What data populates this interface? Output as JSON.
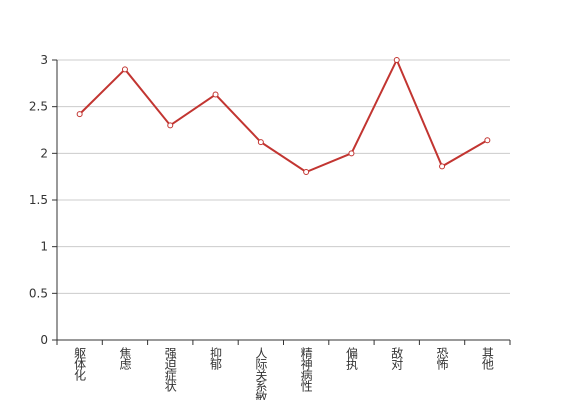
{
  "chart_data": {
    "type": "line",
    "categories": [
      "躯体化",
      "焦虑",
      "强迫症状",
      "抑郁",
      "人际关系敏感",
      "精神病性",
      "偏执",
      "敌对",
      "恐怖",
      "其他"
    ],
    "values": [
      2.42,
      2.9,
      2.3,
      2.63,
      2.12,
      1.8,
      2.0,
      3.0,
      1.86,
      2.14
    ],
    "color": "#c23531",
    "ylim": [
      0,
      3
    ],
    "yticks": [
      0,
      0.5,
      1,
      1.5,
      2,
      2.5,
      3
    ],
    "grid": true
  }
}
